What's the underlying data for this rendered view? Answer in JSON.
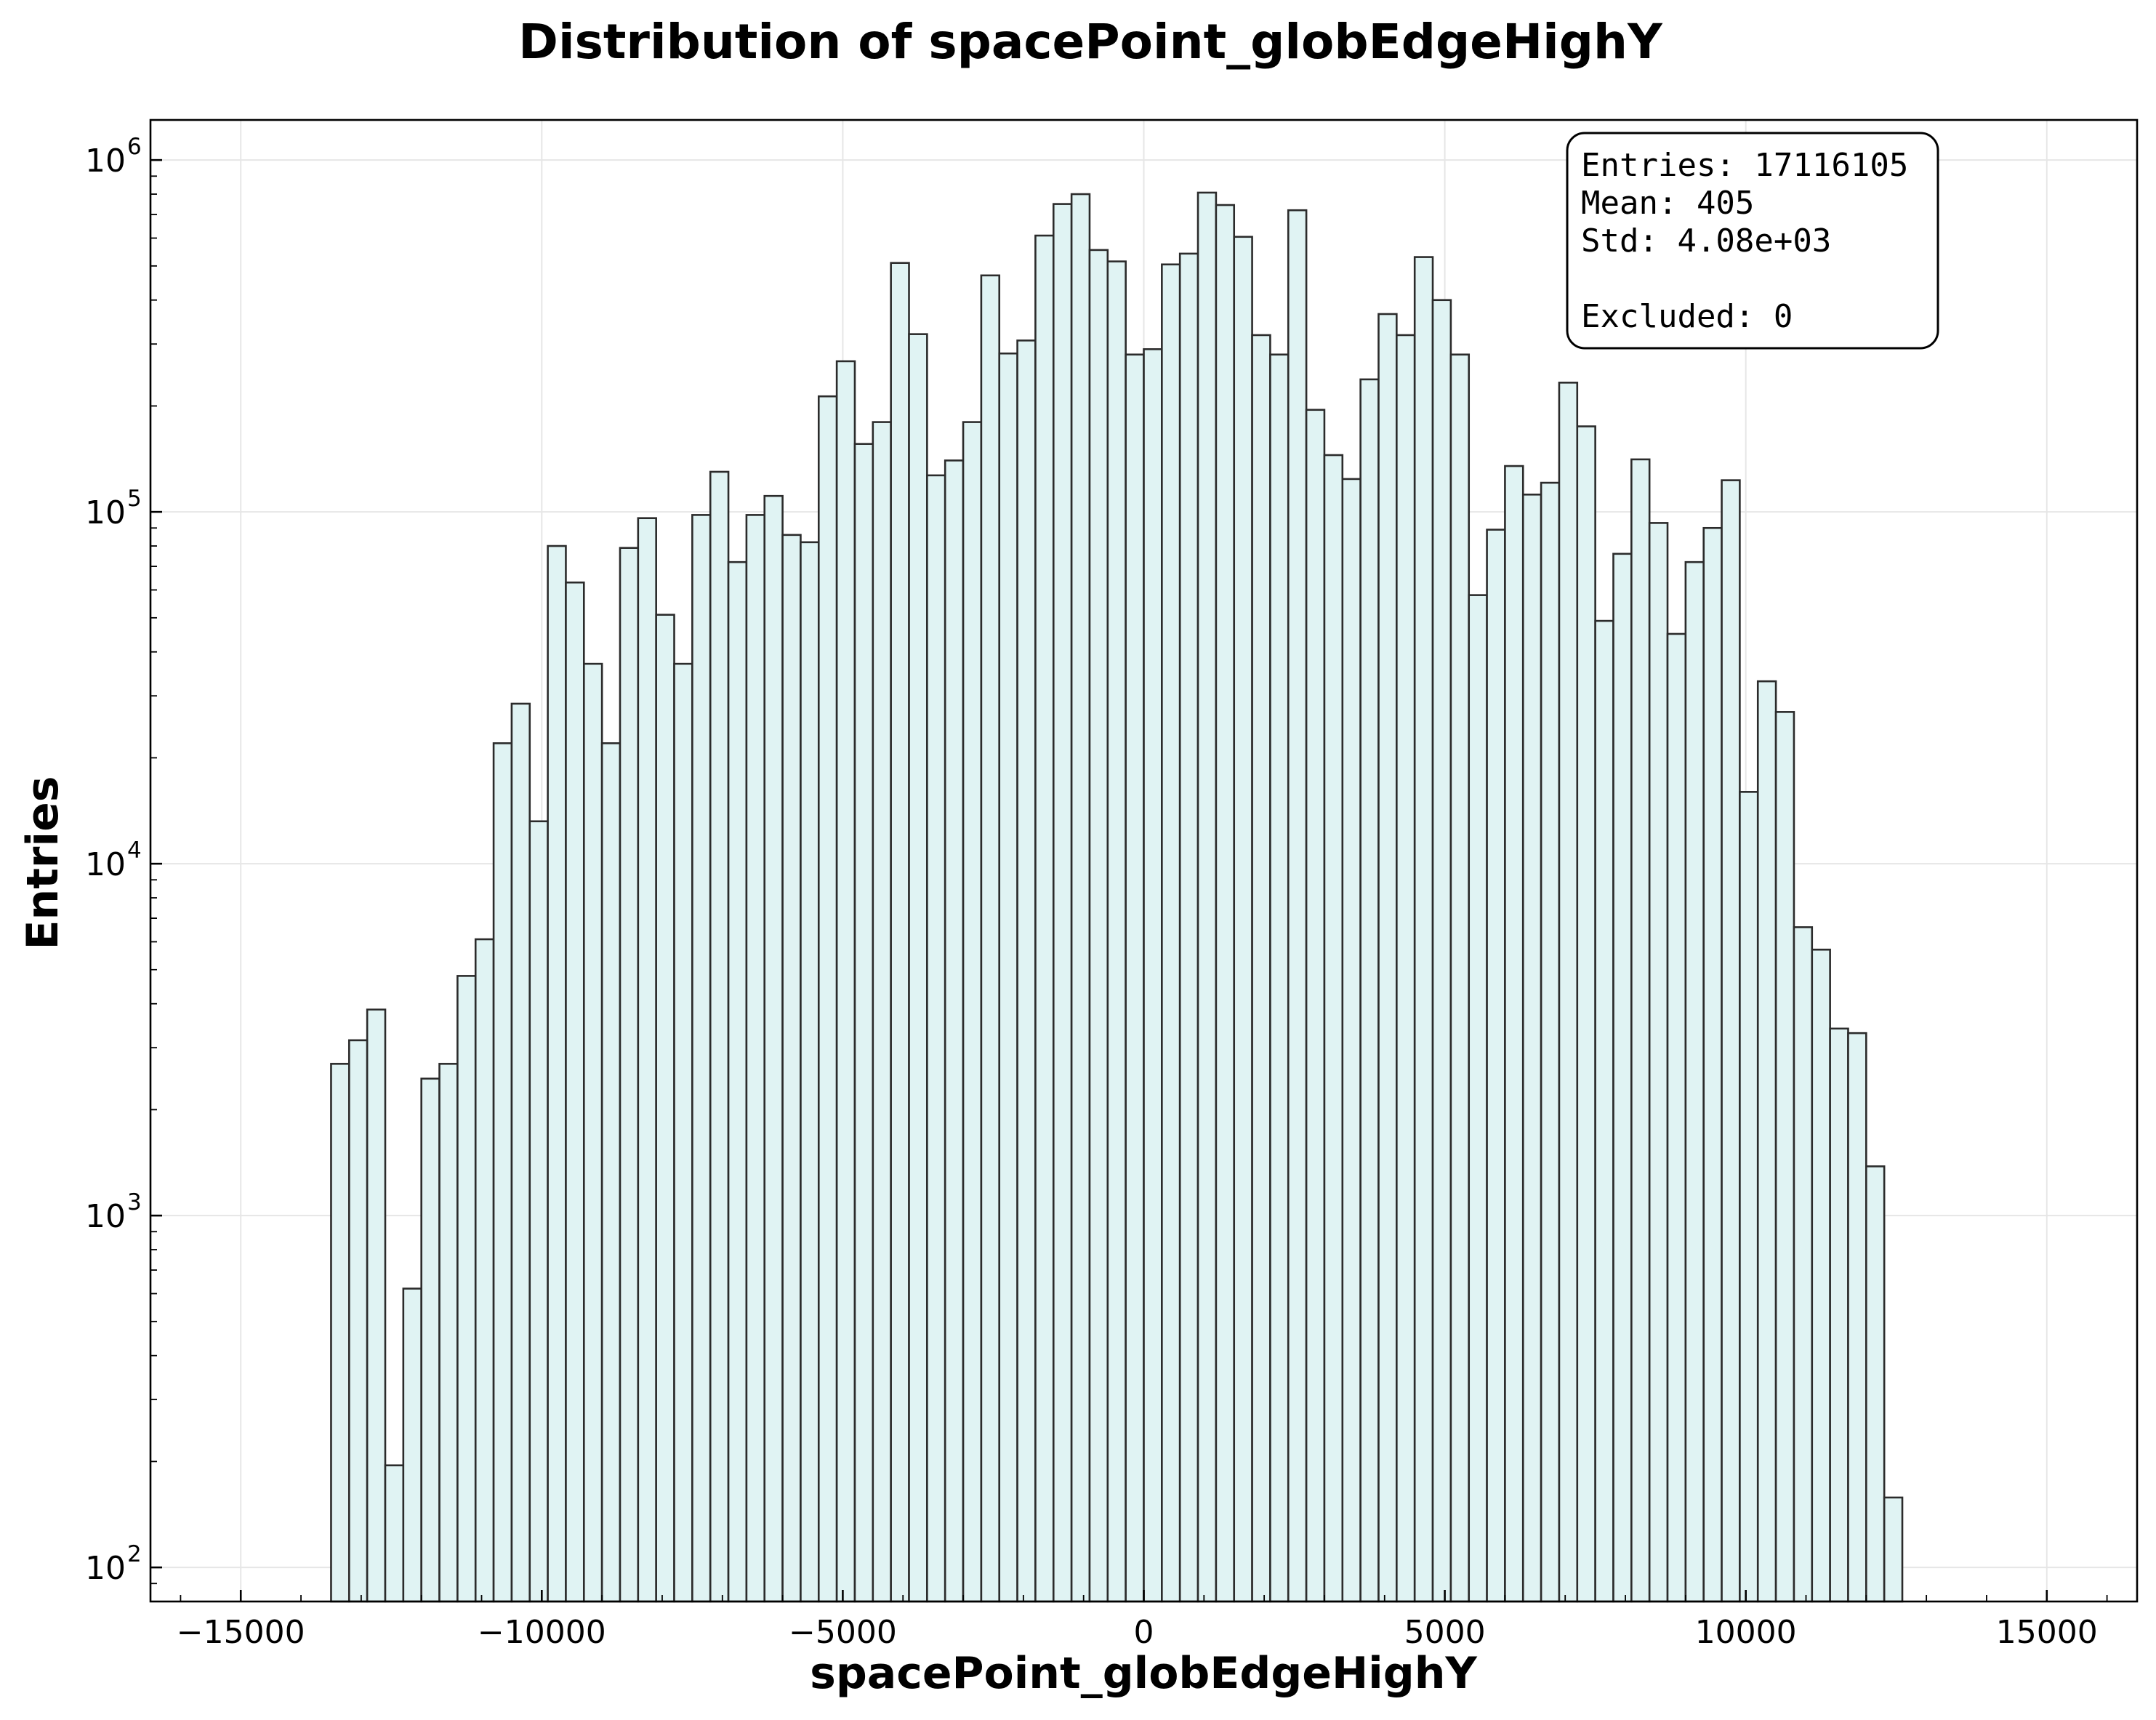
{
  "chart_data": {
    "type": "bar",
    "title": "Distribution of spacePoint_globEdgeHighY",
    "xlabel": "spacePoint_globEdgeHighY",
    "ylabel": "Entries",
    "xlim": [
      -16500,
      16500
    ],
    "ylim": [
      80,
      1300000
    ],
    "yscale": "log",
    "grid": true,
    "x_ticks": [
      -15000,
      -10000,
      -5000,
      0,
      5000,
      10000,
      15000
    ],
    "x_tick_labels": [
      "−15000",
      "−10000",
      "−5000",
      "0",
      "5000",
      "10000",
      "15000"
    ],
    "y_ticks": [
      {
        "value": 100,
        "base": "10",
        "exp": "2"
      },
      {
        "value": 1000,
        "base": "10",
        "exp": "3"
      },
      {
        "value": 10000,
        "base": "10",
        "exp": "4"
      },
      {
        "value": 100000,
        "base": "10",
        "exp": "5"
      },
      {
        "value": 1000000,
        "base": "10",
        "exp": "6"
      }
    ],
    "bin_start": -13500,
    "bin_width": 300,
    "values": [
      2700,
      3150,
      3850,
      195,
      620,
      2450,
      2700,
      4800,
      6100,
      22000,
      28500,
      13200,
      80000,
      63000,
      37000,
      22000,
      79000,
      96000,
      51000,
      37000,
      98000,
      130000,
      72000,
      98000,
      111000,
      86000,
      82000,
      213000,
      268000,
      156000,
      180000,
      510000,
      320000,
      127000,
      140000,
      180000,
      470000,
      282000,
      307000,
      610000,
      750000,
      800000,
      555000,
      515000,
      280000,
      290000,
      505000,
      542000,
      808000,
      745000,
      605000,
      318000,
      280000,
      720000,
      195000,
      145000,
      124000,
      238000,
      365000,
      318000,
      530000,
      400000,
      280000,
      58000,
      89000,
      135000,
      112000,
      121000,
      233000,
      175000,
      49000,
      76000,
      141000,
      93000,
      45000,
      72000,
      90000,
      123000,
      16000,
      33000,
      27000,
      6600,
      5700,
      3400,
      3300,
      1380,
      158
    ],
    "stats": {
      "entries": "Entries: 17116105",
      "mean": "Mean: 405",
      "std": "Std: 4.08e+03",
      "excluded": "Excluded: 0"
    }
  }
}
